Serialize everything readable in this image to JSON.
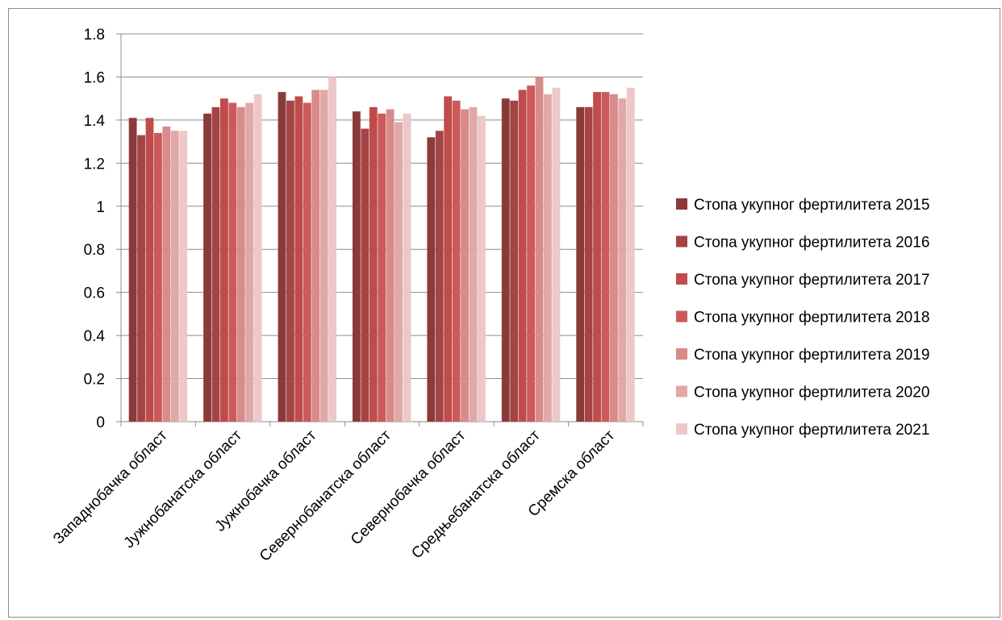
{
  "chart_data": {
    "type": "bar",
    "categories": [
      "Западнобачка област",
      "Јужнобанатска област",
      "Јужнобачка област",
      "Севернобанатска област",
      "Севернобачка област",
      "Средњебанатска област",
      "Сремска област"
    ],
    "series": [
      {
        "name": "Стопа укупног фертилитета 2015",
        "color": "#8b3a3a",
        "values": [
          1.41,
          1.43,
          1.53,
          1.44,
          1.32,
          1.5,
          1.46
        ]
      },
      {
        "name": "Стопа укупног фертилитета 2016",
        "color": "#a54444",
        "values": [
          1.33,
          1.46,
          1.49,
          1.36,
          1.35,
          1.49,
          1.46
        ]
      },
      {
        "name": "Стопа укупног фертилитета 2017",
        "color": "#c04b4b",
        "values": [
          1.41,
          1.5,
          1.51,
          1.46,
          1.51,
          1.54,
          1.53
        ]
      },
      {
        "name": "Стопа укупног фертилитета 2018",
        "color": "#cc5a5a",
        "values": [
          1.34,
          1.48,
          1.48,
          1.43,
          1.49,
          1.56,
          1.53
        ]
      },
      {
        "name": "Стопа укупног фертилитета 2019",
        "color": "#d98a8a",
        "values": [
          1.37,
          1.46,
          1.54,
          1.45,
          1.45,
          1.6,
          1.52
        ]
      },
      {
        "name": "Стопа укупног фертилитета 2020",
        "color": "#e0a8a8",
        "values": [
          1.35,
          1.48,
          1.54,
          1.39,
          1.46,
          1.52,
          1.5
        ]
      },
      {
        "name": "Стопа укупног фертилитета 2021",
        "color": "#ecc8c8",
        "values": [
          1.35,
          1.52,
          1.6,
          1.43,
          1.42,
          1.55,
          1.55
        ]
      }
    ],
    "yticks": [
      "0",
      "0.2",
      "0.4",
      "0.6",
      "0.8",
      "1",
      "1.2",
      "1.4",
      "1.6",
      "1.8"
    ],
    "ylim": [
      0,
      1.8
    ],
    "grid": true,
    "legend": "right"
  }
}
